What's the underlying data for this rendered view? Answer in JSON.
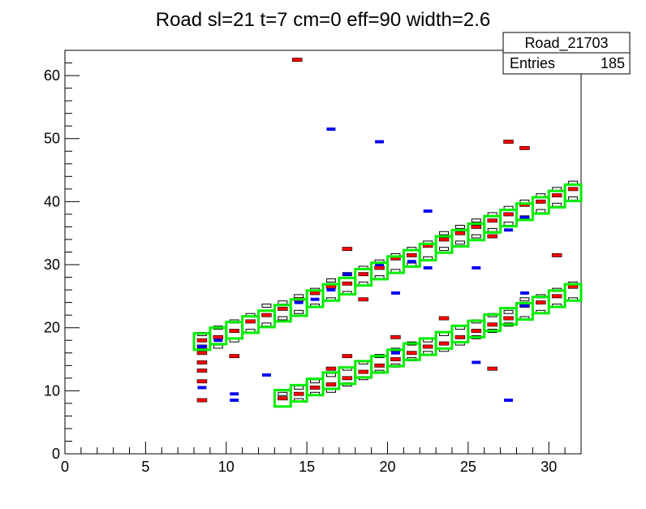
{
  "title": "Road sl=21 t=7 cm=0 eff=90 width=2.6",
  "stats": {
    "name": "Road_21703",
    "entries_label": "Entries",
    "entries_value": "185"
  },
  "colors": {
    "road": "#00ee00",
    "hit_red": "#ff0000",
    "hit_blue": "#0000ee",
    "bin_outline": "#000000"
  },
  "chart_data": {
    "type": "histogram2d-box",
    "title": "Road sl=21 t=7 cm=0 eff=90 width=2.6",
    "xlabel": "",
    "ylabel": "",
    "xlim": [
      0,
      32
    ],
    "ylim": [
      0,
      64
    ],
    "x_ticks": [
      0,
      5,
      10,
      15,
      20,
      25,
      30
    ],
    "y_ticks": [
      0,
      10,
      20,
      30,
      40,
      50,
      60
    ],
    "road_boxes": [
      [
        8.5,
        17.8
      ],
      [
        9.5,
        18.7
      ],
      [
        10.5,
        19.6
      ],
      [
        11.5,
        20.5
      ],
      [
        12.5,
        21.4
      ],
      [
        13.5,
        22.3
      ],
      [
        14.5,
        23.2
      ],
      [
        15.5,
        24.6
      ],
      [
        16.5,
        25.6
      ],
      [
        17.5,
        26.6
      ],
      [
        18.5,
        28
      ],
      [
        19.5,
        29
      ],
      [
        20.5,
        30
      ],
      [
        21.5,
        31
      ],
      [
        22.5,
        32
      ],
      [
        23.5,
        33.2
      ],
      [
        24.5,
        34.2
      ],
      [
        25.5,
        35.2
      ],
      [
        26.5,
        36.4
      ],
      [
        27.5,
        37.4
      ],
      [
        28.5,
        38.4
      ],
      [
        29.5,
        39.4
      ],
      [
        30.5,
        40.4
      ],
      [
        31.5,
        41.4
      ],
      [
        13.5,
        8.8
      ],
      [
        14.5,
        9.6
      ],
      [
        15.5,
        10.6
      ],
      [
        16.5,
        11.6
      ],
      [
        17.5,
        12.4
      ],
      [
        18.5,
        13.4
      ],
      [
        19.5,
        14.2
      ],
      [
        20.5,
        15.2
      ],
      [
        21.5,
        16.2
      ],
      [
        22.5,
        17
      ],
      [
        23.5,
        18
      ],
      [
        24.5,
        19
      ],
      [
        25.5,
        19.8
      ],
      [
        26.5,
        20.8
      ],
      [
        27.5,
        21.8
      ],
      [
        28.5,
        22.6
      ],
      [
        29.5,
        23.6
      ],
      [
        30.5,
        24.6
      ],
      [
        31.5,
        25.6
      ]
    ],
    "red_hits": [
      [
        8.5,
        16
      ],
      [
        8.5,
        17
      ],
      [
        8.5,
        18
      ],
      [
        9.5,
        18.5
      ],
      [
        10.5,
        19.5
      ],
      [
        11.5,
        21
      ],
      [
        12.5,
        22
      ],
      [
        13.5,
        23
      ],
      [
        14.5,
        24.5
      ],
      [
        15.5,
        25.5
      ],
      [
        16.5,
        26.5
      ],
      [
        17.5,
        27
      ],
      [
        18.5,
        28.5
      ],
      [
        19.5,
        29.5
      ],
      [
        20.5,
        31
      ],
      [
        21.5,
        31.5
      ],
      [
        22.5,
        33
      ],
      [
        23.5,
        34
      ],
      [
        24.5,
        35
      ],
      [
        25.5,
        36
      ],
      [
        26.5,
        37
      ],
      [
        27.5,
        38
      ],
      [
        28.5,
        39.5
      ],
      [
        29.5,
        40
      ],
      [
        30.5,
        41
      ],
      [
        31.5,
        42
      ],
      [
        13.5,
        8.8
      ],
      [
        14.5,
        9.5
      ],
      [
        15.5,
        10.5
      ],
      [
        16.5,
        11
      ],
      [
        17.5,
        12
      ],
      [
        18.5,
        13
      ],
      [
        19.5,
        14
      ],
      [
        20.5,
        15
      ],
      [
        21.5,
        16
      ],
      [
        22.5,
        17
      ],
      [
        23.5,
        17.5
      ],
      [
        24.5,
        18.5
      ],
      [
        25.5,
        19.5
      ],
      [
        26.5,
        20.5
      ],
      [
        27.5,
        21.5
      ],
      [
        28.5,
        23.5
      ],
      [
        29.5,
        24
      ],
      [
        30.5,
        25
      ],
      [
        31.5,
        26.5
      ],
      [
        14.4,
        62.5
      ],
      [
        27.5,
        49.5
      ],
      [
        28.5,
        48.5
      ],
      [
        17.5,
        32.5
      ],
      [
        30.5,
        31.5
      ],
      [
        8.5,
        14.5
      ],
      [
        8.5,
        13.2
      ],
      [
        8.5,
        11.5
      ],
      [
        8.5,
        8.5
      ],
      [
        10.5,
        15.5
      ],
      [
        16.5,
        13.5
      ],
      [
        17.5,
        15.5
      ],
      [
        20.5,
        18.5
      ],
      [
        23.5,
        21.5
      ],
      [
        26.5,
        13.5
      ],
      [
        18.5,
        24.5
      ],
      [
        26.5,
        34.5
      ]
    ],
    "blue_hits": [
      [
        8.5,
        17
      ],
      [
        9.5,
        18
      ],
      [
        15.5,
        24.5
      ],
      [
        16.5,
        26
      ],
      [
        19.5,
        49.5
      ],
      [
        16.5,
        51.5
      ],
      [
        22.5,
        38.5
      ],
      [
        25.5,
        29.5
      ],
      [
        20.5,
        25.5
      ],
      [
        8.5,
        10.5
      ],
      [
        10.5,
        9.5
      ],
      [
        10.5,
        8.5
      ],
      [
        12.5,
        12.5
      ],
      [
        14.5,
        24
      ],
      [
        25.5,
        14.5
      ],
      [
        27.5,
        8.5
      ],
      [
        28.5,
        23.5
      ],
      [
        28.5,
        25.5
      ],
      [
        27.5,
        35.5
      ],
      [
        28.5,
        37.5
      ],
      [
        22.5,
        29.5
      ],
      [
        17.5,
        28.5
      ],
      [
        19.5,
        30
      ],
      [
        20.5,
        16
      ],
      [
        21.5,
        30.5
      ]
    ],
    "white_bins": [
      [
        8.5,
        19
      ],
      [
        9.5,
        20
      ],
      [
        10.5,
        21
      ],
      [
        11.5,
        22
      ],
      [
        12.5,
        23.5
      ],
      [
        13.5,
        24
      ],
      [
        14.5,
        25
      ],
      [
        15.5,
        26
      ],
      [
        16.5,
        27.5
      ],
      [
        17.5,
        28.5
      ],
      [
        18.5,
        29.5
      ],
      [
        19.5,
        30.5
      ],
      [
        20.5,
        31.5
      ],
      [
        21.5,
        32.5
      ],
      [
        22.5,
        33.5
      ],
      [
        23.5,
        35
      ],
      [
        24.5,
        36
      ],
      [
        25.5,
        37
      ],
      [
        26.5,
        38
      ],
      [
        27.5,
        39
      ],
      [
        28.5,
        40
      ],
      [
        29.5,
        41
      ],
      [
        30.5,
        42
      ],
      [
        31.5,
        43
      ],
      [
        9.5,
        17
      ],
      [
        10.5,
        18
      ],
      [
        11.5,
        19.5
      ],
      [
        12.5,
        20.5
      ],
      [
        13.5,
        21.5
      ],
      [
        14.5,
        22.5
      ],
      [
        15.5,
        23.5
      ],
      [
        16.5,
        24.5
      ],
      [
        17.5,
        25.5
      ],
      [
        18.5,
        27
      ],
      [
        19.5,
        28
      ],
      [
        20.5,
        29
      ],
      [
        21.5,
        30
      ],
      [
        22.5,
        31
      ],
      [
        23.5,
        32.5
      ],
      [
        24.5,
        33.5
      ],
      [
        25.5,
        34.5
      ],
      [
        26.5,
        35.5
      ],
      [
        27.5,
        36.5
      ],
      [
        28.5,
        37.5
      ],
      [
        29.5,
        38.5
      ],
      [
        30.5,
        39.5
      ],
      [
        31.5,
        40.5
      ],
      [
        13.5,
        9.5
      ],
      [
        14.5,
        10.5
      ],
      [
        15.5,
        11.5
      ],
      [
        16.5,
        12.5
      ],
      [
        17.5,
        13.5
      ],
      [
        18.5,
        14.5
      ],
      [
        19.5,
        15.5
      ],
      [
        20.5,
        16.5
      ],
      [
        21.5,
        17.5
      ],
      [
        22.5,
        18
      ],
      [
        23.5,
        19
      ],
      [
        24.5,
        20
      ],
      [
        25.5,
        21
      ],
      [
        26.5,
        22
      ],
      [
        27.5,
        22.5
      ],
      [
        28.5,
        24.5
      ],
      [
        29.5,
        25
      ],
      [
        30.5,
        26
      ],
      [
        31.5,
        27
      ],
      [
        14.5,
        8.5
      ],
      [
        15.5,
        9.5
      ],
      [
        16.5,
        10
      ],
      [
        17.5,
        11
      ],
      [
        18.5,
        12
      ],
      [
        19.5,
        13
      ],
      [
        20.5,
        14
      ],
      [
        21.5,
        15
      ],
      [
        22.5,
        16
      ],
      [
        23.5,
        16.5
      ],
      [
        24.5,
        17.5
      ],
      [
        25.5,
        18.5
      ],
      [
        26.5,
        19.5
      ],
      [
        27.5,
        20.5
      ],
      [
        28.5,
        21.5
      ],
      [
        29.5,
        22.5
      ],
      [
        30.5,
        23.5
      ],
      [
        31.5,
        24.5
      ]
    ]
  }
}
